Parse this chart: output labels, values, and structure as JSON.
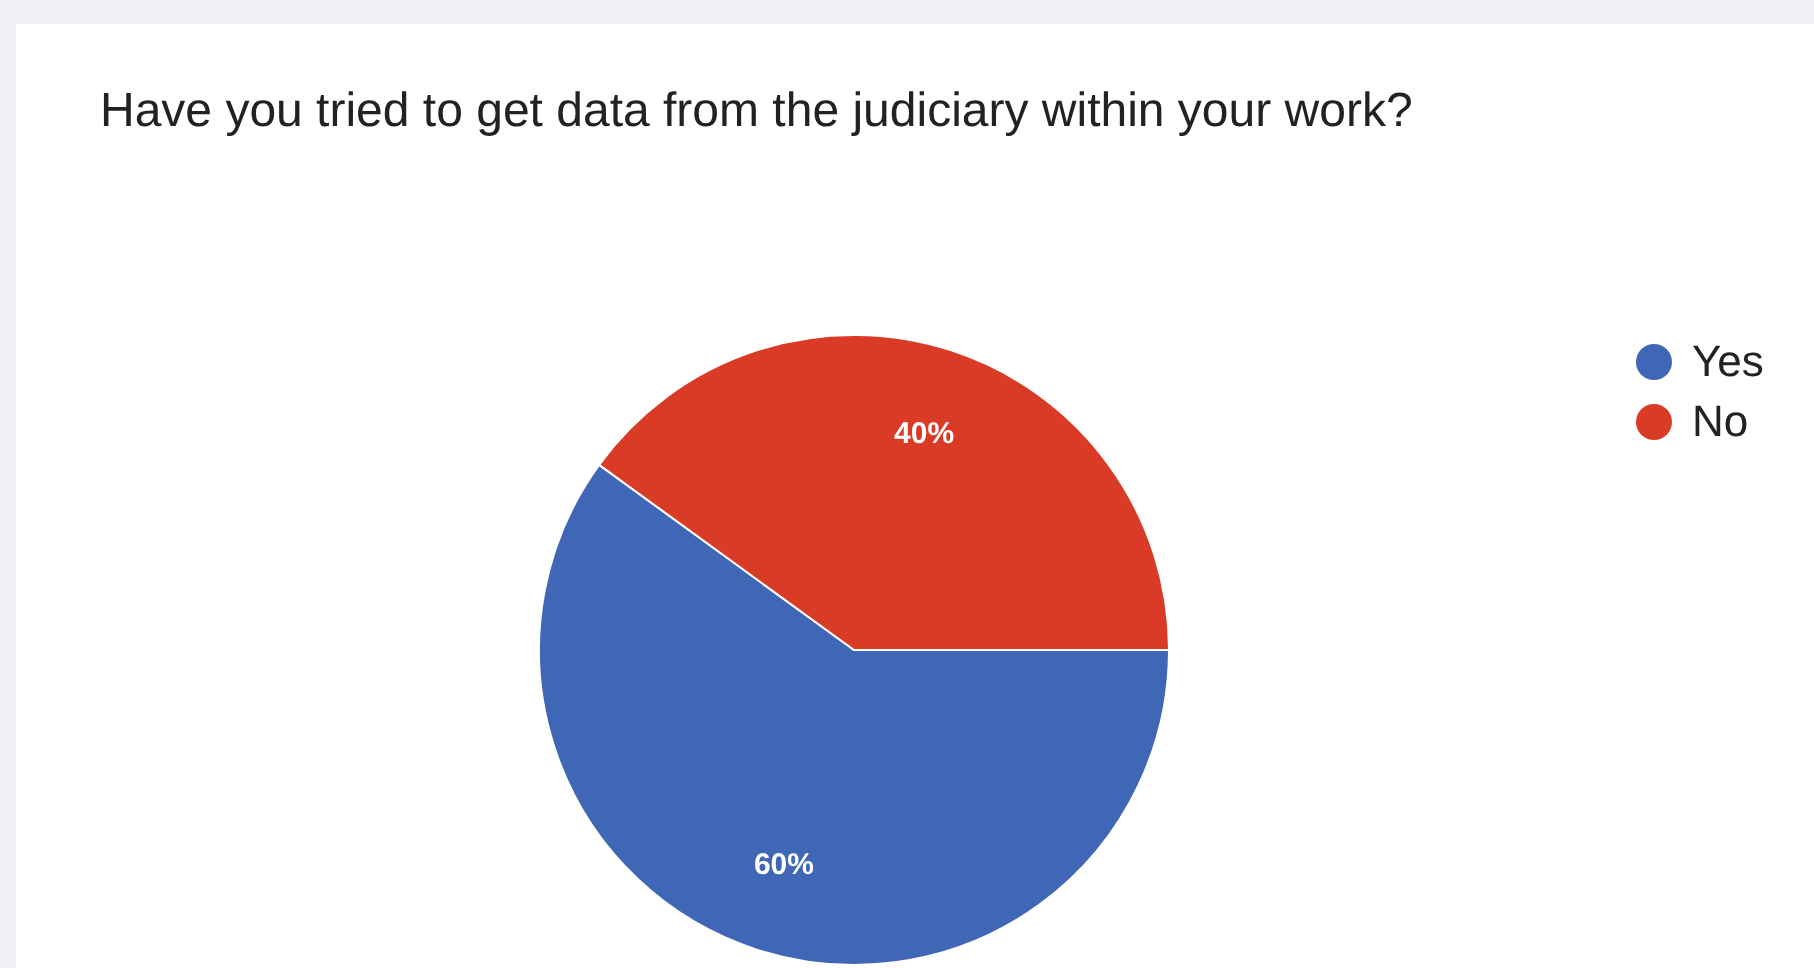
{
  "chart_data": {
    "type": "pie",
    "title": "Have you tried to get data from the judiciary within your work?",
    "categories": [
      "Yes",
      "No"
    ],
    "values": [
      60,
      40
    ],
    "colors": [
      "#3f67b5",
      "#d93b26"
    ],
    "value_labels": [
      "60%",
      "40%"
    ],
    "legend": "top right"
  }
}
